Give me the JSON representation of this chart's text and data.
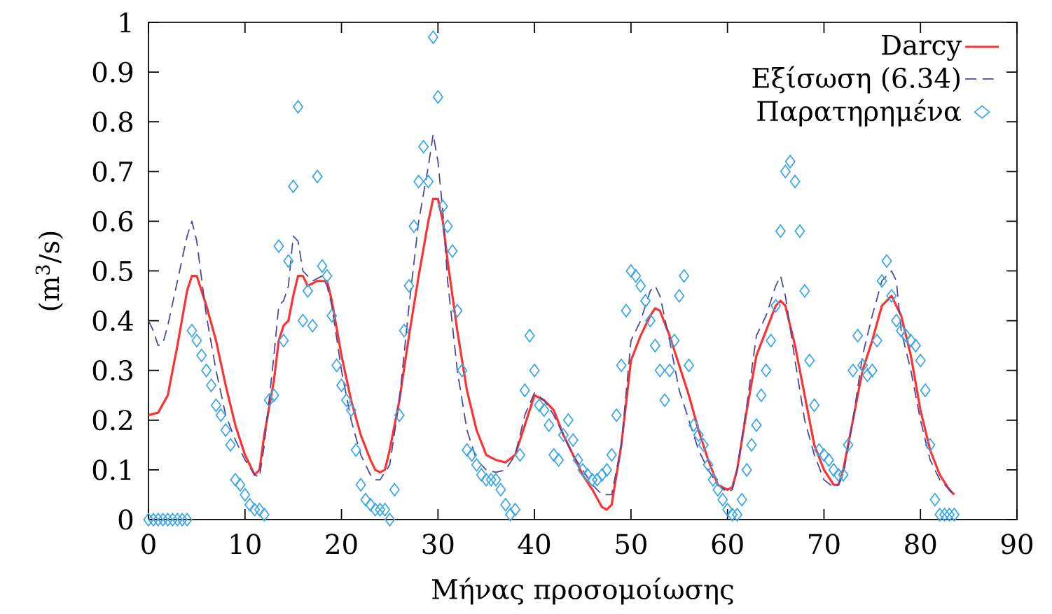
{
  "chart_data": {
    "type": "line",
    "xlabel": "Μήνας προσομοίωσης",
    "ylabel": "(m$^{3}$/s)",
    "xlim": [
      0,
      90
    ],
    "ylim": [
      0,
      1
    ],
    "xticks": [
      0,
      10,
      20,
      30,
      40,
      50,
      60,
      70,
      80,
      90
    ],
    "yticks": [
      0,
      0.1,
      0.2,
      0.3,
      0.4,
      0.5,
      0.6,
      0.7,
      0.8,
      0.9,
      1
    ],
    "legend": "top right",
    "grid": false,
    "series": [
      {
        "name": "Darcy",
        "color": "#ff3030",
        "line_style": "solid",
        "marker": "none",
        "x": [
          0,
          1,
          2,
          3,
          4,
          4.5,
          5,
          6,
          7,
          8,
          9,
          10,
          11,
          11.5,
          12,
          13,
          13.5,
          14,
          14.5,
          15,
          15.5,
          16,
          16.5,
          17,
          17.5,
          18,
          18.5,
          19,
          20,
          21,
          22,
          23,
          23.5,
          24,
          24.5,
          25,
          26,
          27,
          28,
          29,
          29.5,
          30,
          30.5,
          31,
          32,
          33,
          34,
          35,
          36,
          37,
          38,
          39,
          40,
          41,
          42,
          43,
          44,
          45,
          46,
          47,
          47.5,
          48,
          49,
          50,
          51,
          52,
          52.5,
          53,
          54,
          55,
          56,
          57,
          58,
          59,
          60,
          60.5,
          61,
          62,
          63,
          64,
          65,
          65.5,
          66,
          67,
          68,
          69,
          70,
          71,
          71.5,
          72,
          73,
          74,
          75,
          76,
          77,
          78,
          79,
          80,
          81,
          82,
          83,
          83.5
        ],
        "values": [
          0.21,
          0.215,
          0.25,
          0.35,
          0.46,
          0.49,
          0.49,
          0.43,
          0.36,
          0.27,
          0.19,
          0.13,
          0.09,
          0.1,
          0.17,
          0.28,
          0.36,
          0.39,
          0.4,
          0.45,
          0.49,
          0.49,
          0.47,
          0.475,
          0.48,
          0.48,
          0.48,
          0.44,
          0.33,
          0.24,
          0.17,
          0.12,
          0.1,
          0.095,
          0.1,
          0.14,
          0.24,
          0.37,
          0.49,
          0.6,
          0.645,
          0.645,
          0.6,
          0.52,
          0.38,
          0.26,
          0.18,
          0.13,
          0.12,
          0.115,
          0.13,
          0.19,
          0.25,
          0.24,
          0.22,
          0.17,
          0.13,
          0.09,
          0.06,
          0.025,
          0.02,
          0.03,
          0.15,
          0.32,
          0.37,
          0.41,
          0.425,
          0.42,
          0.37,
          0.31,
          0.25,
          0.18,
          0.12,
          0.07,
          0.06,
          0.065,
          0.1,
          0.22,
          0.33,
          0.38,
          0.43,
          0.44,
          0.43,
          0.35,
          0.25,
          0.15,
          0.1,
          0.07,
          0.07,
          0.1,
          0.2,
          0.3,
          0.36,
          0.43,
          0.45,
          0.41,
          0.33,
          0.22,
          0.14,
          0.09,
          0.06,
          0.05
        ]
      },
      {
        "name": "Εξίσωση (6.34)",
        "color": "#4848a0",
        "line_style": "dashed",
        "marker": "none",
        "x": [
          0,
          0.5,
          1,
          1.5,
          2,
          3,
          4,
          4.5,
          5,
          6,
          7,
          8,
          9,
          10,
          11,
          11.5,
          12,
          13,
          13.5,
          14,
          14.5,
          15,
          15.5,
          16,
          16.5,
          17,
          18,
          18.5,
          19,
          20,
          21,
          22,
          23,
          23.5,
          24,
          25,
          26,
          27,
          28,
          29,
          29.5,
          30,
          30.5,
          31,
          32,
          33,
          34,
          35,
          36,
          37,
          38,
          39,
          40,
          41,
          42,
          43,
          44,
          45,
          46,
          47,
          48,
          49,
          50,
          51,
          52,
          52.5,
          53,
          54,
          55,
          56,
          57,
          58,
          59,
          60,
          60.5,
          61,
          62,
          63,
          64,
          65,
          65.5,
          66,
          67,
          68,
          69,
          70,
          71,
          71.5,
          72,
          73,
          74,
          75,
          76,
          77,
          77.5,
          78,
          79,
          80,
          81,
          82,
          83,
          83.5
        ],
        "values": [
          0.4,
          0.38,
          0.35,
          0.355,
          0.39,
          0.48,
          0.57,
          0.6,
          0.56,
          0.41,
          0.3,
          0.21,
          0.16,
          0.12,
          0.09,
          0.085,
          0.15,
          0.33,
          0.43,
          0.44,
          0.47,
          0.57,
          0.56,
          0.5,
          0.49,
          0.48,
          0.49,
          0.47,
          0.43,
          0.3,
          0.2,
          0.13,
          0.09,
          0.08,
          0.08,
          0.11,
          0.24,
          0.43,
          0.6,
          0.71,
          0.775,
          0.72,
          0.62,
          0.48,
          0.3,
          0.18,
          0.12,
          0.1,
          0.095,
          0.1,
          0.13,
          0.21,
          0.255,
          0.24,
          0.21,
          0.17,
          0.13,
          0.1,
          0.07,
          0.05,
          0.05,
          0.15,
          0.36,
          0.4,
          0.46,
          0.47,
          0.45,
          0.36,
          0.26,
          0.2,
          0.14,
          0.1,
          0.07,
          0.055,
          0.06,
          0.1,
          0.23,
          0.37,
          0.41,
          0.47,
          0.49,
          0.45,
          0.32,
          0.2,
          0.13,
          0.08,
          0.065,
          0.07,
          0.09,
          0.2,
          0.33,
          0.41,
          0.48,
          0.5,
          0.48,
          0.38,
          0.3,
          0.2,
          0.12,
          0.08,
          0.06,
          0.05
        ]
      },
      {
        "name": "Παρατηρημένα",
        "type": "scatter",
        "color": "#3aa8e8",
        "marker": "diamond",
        "x": [
          0,
          0.5,
          1,
          1.5,
          2,
          2.5,
          3,
          3.5,
          4,
          4.5,
          5,
          5.5,
          6,
          6.5,
          7,
          7.5,
          8,
          8.5,
          9,
          9.5,
          10,
          10.5,
          11,
          11.5,
          12,
          12.5,
          13,
          13.5,
          14,
          14.5,
          15,
          15.5,
          16,
          16.5,
          17,
          17.5,
          18,
          18.5,
          19,
          19.5,
          20,
          20.5,
          21,
          21.5,
          22,
          22.5,
          23,
          23.5,
          24,
          24.5,
          25,
          25.5,
          26,
          26.5,
          27,
          27.5,
          28,
          28.5,
          29,
          29.5,
          30,
          30.5,
          31,
          31.5,
          32,
          32.5,
          33,
          33.5,
          34,
          34.5,
          35,
          35.5,
          36,
          36.5,
          37,
          37.5,
          38,
          38.5,
          39,
          39.5,
          40,
          40.5,
          41,
          41.5,
          42,
          42.5,
          43,
          43.5,
          44,
          44.5,
          45,
          45.5,
          46,
          46.5,
          47,
          47.5,
          48,
          48.5,
          49,
          49.5,
          50,
          50.5,
          51,
          51.5,
          52,
          52.5,
          53,
          53.5,
          54,
          54.5,
          55,
          55.5,
          56,
          56.5,
          57,
          57.5,
          58,
          58.5,
          59,
          59.5,
          60,
          60.5,
          61,
          61.5,
          62,
          62.5,
          63,
          63.5,
          64,
          64.5,
          65,
          65.5,
          66,
          66.5,
          67,
          67.5,
          68,
          68.5,
          69,
          69.5,
          70,
          70.5,
          71,
          71.5,
          72,
          72.5,
          73,
          73.5,
          74,
          74.5,
          75,
          75.5,
          76,
          76.5,
          77,
          77.5,
          78,
          78.5,
          79,
          79.5,
          80,
          80.5,
          81,
          81.5,
          82,
          82.5,
          83,
          83.5
        ],
        "values": [
          0,
          0,
          0,
          0,
          0,
          0,
          0,
          0,
          0,
          0.38,
          0.36,
          0.33,
          0.3,
          0.27,
          0.23,
          0.21,
          0.18,
          0.15,
          0.08,
          0.07,
          0.05,
          0.03,
          0.02,
          0.02,
          0.01,
          0.24,
          0.25,
          0.55,
          0.36,
          0.52,
          0.67,
          0.83,
          0.4,
          0.46,
          0.39,
          0.69,
          0.51,
          0.49,
          0.41,
          0.31,
          0.27,
          0.24,
          0.22,
          0.14,
          0.07,
          0.04,
          0.03,
          0.02,
          0.02,
          0.02,
          0,
          0.06,
          0.21,
          0.38,
          0.47,
          0.59,
          0.68,
          0.75,
          0.68,
          0.97,
          0.85,
          0.63,
          0.59,
          0.54,
          0.42,
          0.3,
          0.14,
          0.13,
          0.11,
          0.09,
          0.08,
          0.08,
          0.08,
          0.06,
          0.03,
          0.01,
          0.02,
          0.13,
          0.26,
          0.37,
          0.3,
          0.23,
          0.22,
          0.19,
          0.13,
          0.12,
          0.17,
          0.2,
          0.16,
          0.12,
          0.1,
          0.09,
          0.08,
          0.08,
          0.09,
          0.1,
          0.13,
          0.21,
          0.31,
          0.42,
          0.5,
          0.49,
          0.47,
          0.44,
          0.4,
          0.35,
          0.3,
          0.24,
          0.3,
          0.36,
          0.45,
          0.49,
          0.31,
          0.19,
          0.17,
          0.15,
          0.11,
          0.08,
          0.06,
          0.04,
          0.02,
          0.01,
          0.01,
          0.04,
          0.1,
          0.15,
          0.19,
          0.25,
          0.3,
          0.36,
          0.43,
          0.58,
          0.7,
          0.72,
          0.68,
          0.58,
          0.46,
          0.32,
          0.23,
          0.14,
          0.13,
          0.12,
          0.1,
          0.09,
          0.09,
          0.15,
          0.3,
          0.37,
          0.31,
          0.29,
          0.3,
          0.36,
          0.48,
          0.52,
          0.45,
          0.4,
          0.38,
          0.37,
          0.36,
          0.35,
          0.32,
          0.26,
          0.15,
          0.04,
          0.01,
          0.01,
          0.01,
          0.01
        ]
      }
    ]
  }
}
